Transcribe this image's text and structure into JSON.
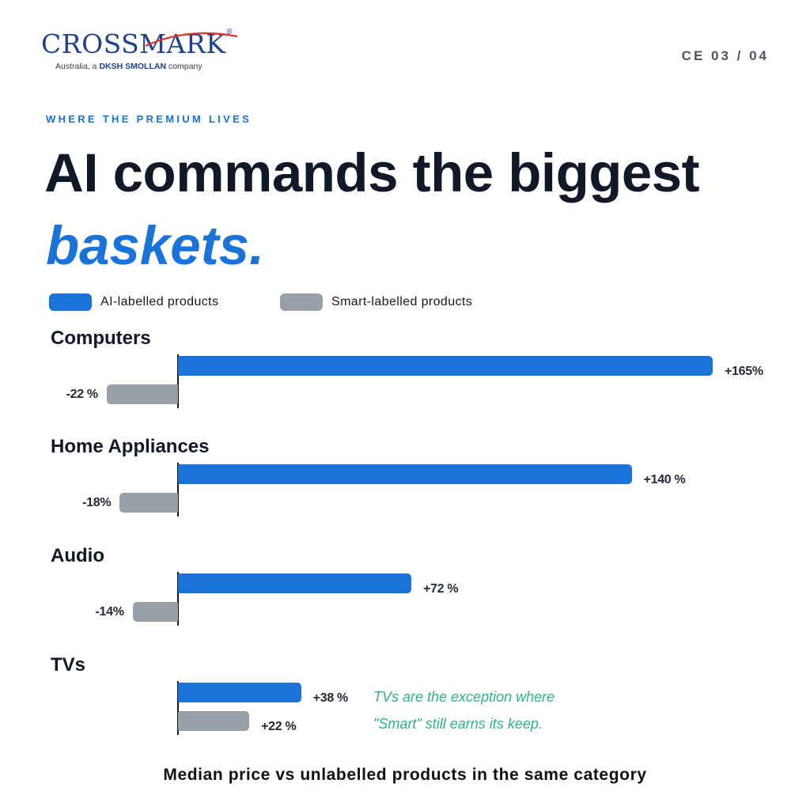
{
  "brand": {
    "name": "CROSSMARK",
    "registered": "®",
    "subtitle_pre": "Australia, a ",
    "subtitle_bold": "DKSH SMOLLAN",
    "subtitle_post": " company",
    "color": "#1f3f8f",
    "swoosh_color": "#e0322b"
  },
  "page_number": "CE 03 / 04",
  "eyebrow": "WHERE THE PREMIUM LIVES",
  "title_line1": "AI commands the biggest",
  "title_line2": "baskets.",
  "chart_data": {
    "type": "bar",
    "orientation": "horizontal",
    "categories": [
      "Computers",
      "Home Appliances",
      "Audio",
      "TVs"
    ],
    "series": [
      {
        "name": "AI-labelled products",
        "color": "#1a73d9",
        "values": [
          165,
          140,
          72,
          38
        ],
        "labels": [
          "+165%",
          "+140 %",
          "+72 %",
          "+38 %"
        ]
      },
      {
        "name": "Smart-labelled products",
        "color": "#9aa0a8",
        "values": [
          -22,
          -18,
          -14,
          22
        ],
        "labels": [
          "-22 %",
          "-18%",
          "-14%",
          "+22 %"
        ]
      }
    ],
    "unit": "%",
    "annotation": [
      "TVs are the exception where",
      "\"Smart\" still earns its keep."
    ],
    "annotation_color": "#2bb38a",
    "caption": "Median price vs unlabelled products in the same category",
    "grid": false,
    "legend_position": "top-left"
  }
}
